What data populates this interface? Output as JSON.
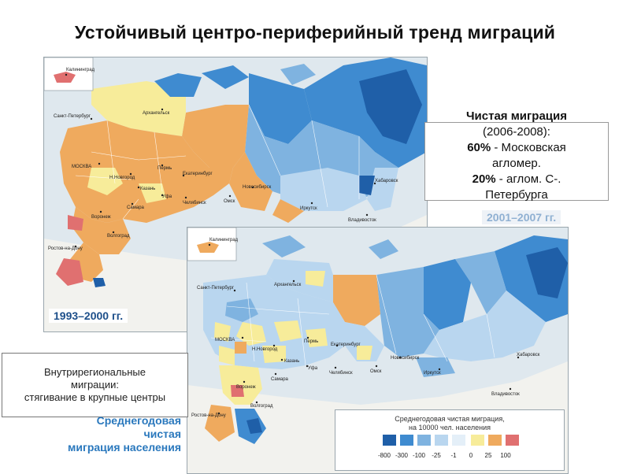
{
  "title": "Устойчивый центро-периферийный тренд миграций",
  "net_migration": {
    "heading": "Чистая миграция",
    "years": "(2006-2008):",
    "moscow_pct": "60%",
    "moscow_text": " - Московская",
    "moscow_text2": "агломер.",
    "spb_pct": "20%",
    "spb_text": " - аглом. С-.",
    "spb_text2": "Петербурга"
  },
  "intraregional": {
    "line1": "Внутрирегиональные",
    "line2": "миграции:",
    "line3": "стягивание в крупные центры"
  },
  "caption": {
    "line1": "Среднегодовая",
    "line2": "чистая",
    "line3": "миграция населения"
  },
  "map_1993": {
    "period": "1993–2000 гг.",
    "cities": [
      "Калининград",
      "Санкт-Петербург",
      "Архангельск",
      "МОСКВА",
      "Н.Новгород",
      "Пермь",
      "Екатеринбург",
      "Казань",
      "Уфа",
      "Самара",
      "Челябинск",
      "Омск",
      "Новосибирск",
      "Воронеж",
      "Волгоград",
      "Ростов-на-Дону",
      "Иркутск",
      "Хабаровск",
      "Владивосток"
    ]
  },
  "map_2001": {
    "period": "2001–2007 гг.",
    "cities": [
      "Калининград",
      "Санкт-Петербург",
      "Архангельск",
      "МОСКВА",
      "Н.Новгород",
      "Пермь",
      "Екатеринбург",
      "Казань",
      "Уфа",
      "Самара",
      "Челябинск",
      "Омск",
      "Новосибирск",
      "Воронеж",
      "Волгоград",
      "Ростов-на-Дону",
      "Иркутск",
      "Хабаровск",
      "Владивосток"
    ]
  },
  "legend": {
    "title1": "Среднегодовая чистая миграция,",
    "title2": "на 10000 чел. населения",
    "ticks": [
      "-800",
      "-300",
      "-100",
      "-25",
      "-1",
      "0",
      "25",
      "100"
    ],
    "colors": [
      "#1f5fa8",
      "#3f8bd0",
      "#7fb3e0",
      "#b9d6ef",
      "#e4eff8",
      "#f7ec9a",
      "#efaa5e",
      "#e07070"
    ]
  }
}
